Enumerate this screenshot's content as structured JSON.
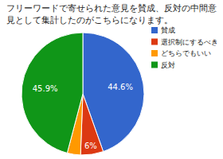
{
  "chart_data": {
    "type": "pie",
    "title": "フリーワードで寄せられた意見を賛成、反対の中間意見として集計したのがこちらになります。",
    "categories": [
      "賛成",
      "選択制にするべき",
      "どちらでもいい",
      "反対"
    ],
    "values": [
      44.6,
      6,
      3.5,
      45.9
    ],
    "value_labels": [
      "44.6%",
      "6%",
      null,
      "45.9%"
    ],
    "colors": [
      "#3366cc",
      "#dc3912",
      "#ff9900",
      "#109618"
    ],
    "data_labels": true,
    "legend": "right"
  }
}
